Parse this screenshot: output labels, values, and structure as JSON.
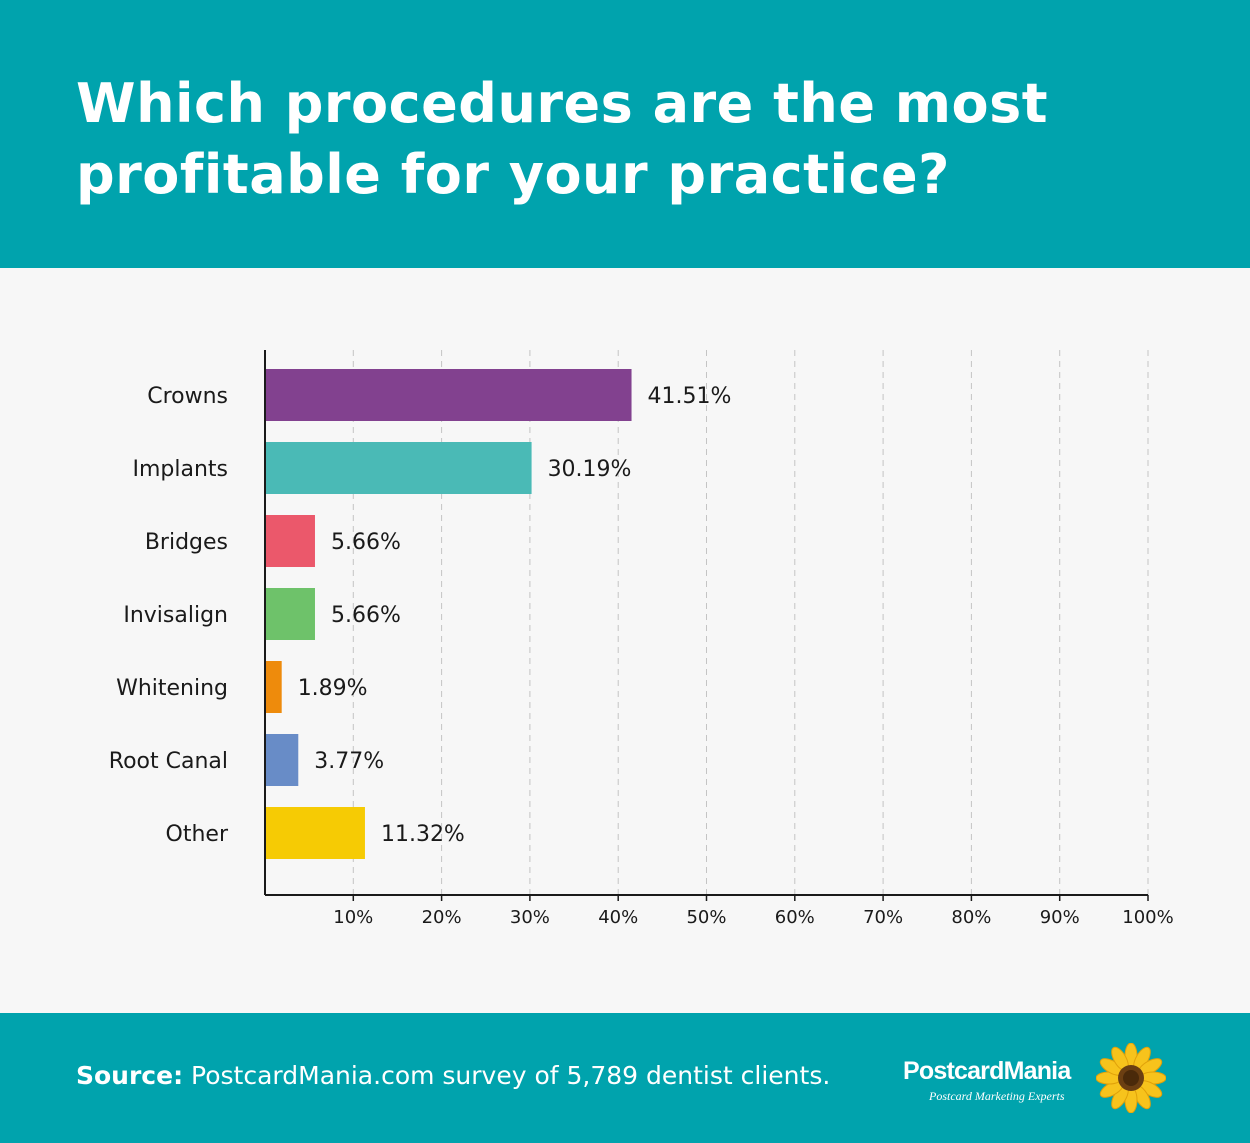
{
  "header": {
    "title": "Which procedures are the most profitable for your practice?"
  },
  "chart_data": {
    "type": "bar",
    "orientation": "horizontal",
    "title": "Which procedures are the most profitable for your practice?",
    "categories": [
      "Crowns",
      "Implants",
      "Bridges",
      "Invisalign",
      "Whitening",
      "Root Canal",
      "Other"
    ],
    "values": [
      41.51,
      30.19,
      5.66,
      5.66,
      1.89,
      3.77,
      11.32
    ],
    "value_labels": [
      "41.51%",
      "30.19%",
      "5.66%",
      "5.66%",
      "1.89%",
      "3.77%",
      "11.32%"
    ],
    "colors": [
      "#82418f",
      "#4abab6",
      "#eb586b",
      "#6ec26a",
      "#ee8b0c",
      "#688cc7",
      "#f6cb04"
    ],
    "xlim": [
      0,
      100
    ],
    "xticks": [
      10,
      20,
      30,
      40,
      50,
      60,
      70,
      80,
      90,
      100
    ],
    "xtick_labels": [
      "10%",
      "20%",
      "30%",
      "40%",
      "50%",
      "60%",
      "70%",
      "80%",
      "90%",
      "100%"
    ],
    "xlabel": "",
    "ylabel": "",
    "grid": "vertical dashed",
    "legend": "none"
  },
  "footer": {
    "source_label": "Source:",
    "source_text": " PostcardMania.com survey of 5,789 dentist clients.",
    "logo_name": "PostcardMania",
    "logo_tagline": "Postcard Marketing Experts"
  },
  "colors": {
    "header_bg": "#00a3ad",
    "chart_bg": "#f7f7f7",
    "text": "#1a1a1a"
  }
}
